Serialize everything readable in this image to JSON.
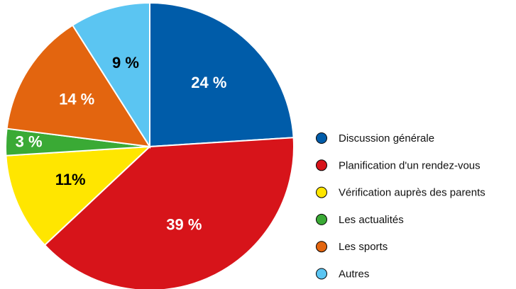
{
  "chart_data": {
    "type": "pie",
    "categories": [
      "Discussion générale",
      "Planification d'un rendez-vous",
      "Vérification auprès des parents",
      "Les actualités",
      "Les sports",
      "Autres"
    ],
    "values": [
      24,
      39,
      11,
      3,
      14,
      9
    ],
    "value_labels": [
      "24 %",
      "39 %",
      "11%",
      "3 %",
      "14 %",
      "9 %"
    ],
    "colors": [
      "#005ca9",
      "#d7141a",
      "#ffe600",
      "#3aaa35",
      "#e3650f",
      "#5bc5f2"
    ],
    "label_colors": [
      "#ffffff",
      "#ffffff",
      "#000000",
      "#ffffff",
      "#ffffff",
      "#000000"
    ]
  }
}
